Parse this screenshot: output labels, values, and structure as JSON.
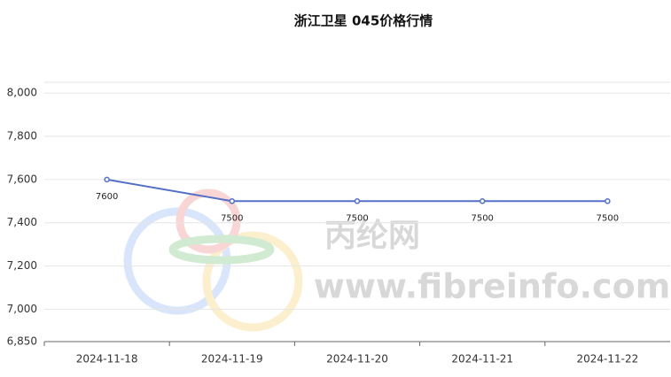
{
  "chart_data": {
    "type": "line",
    "title": "浙江卫星 045价格行情",
    "categories": [
      "2024-11-18",
      "2024-11-19",
      "2024-11-20",
      "2024-11-21",
      "2024-11-22"
    ],
    "series": [
      {
        "name": "浙江卫星 045",
        "color": "#5470c6",
        "values": [
          7600,
          7500,
          7500,
          7500,
          7500
        ]
      }
    ],
    "ylim": [
      6850,
      8050
    ],
    "yticks": [
      {
        "value": 6850,
        "label": "6,850"
      },
      {
        "value": 7000,
        "label": "7,000"
      },
      {
        "value": 7200,
        "label": "7,200"
      },
      {
        "value": 7400,
        "label": "7,400"
      },
      {
        "value": 7600,
        "label": "7,600"
      },
      {
        "value": 7800,
        "label": "7,800"
      },
      {
        "value": 8000,
        "label": "8,000"
      }
    ],
    "grid": true,
    "watermark": [
      "丙纶网",
      "www.fibreinfo.com"
    ]
  }
}
